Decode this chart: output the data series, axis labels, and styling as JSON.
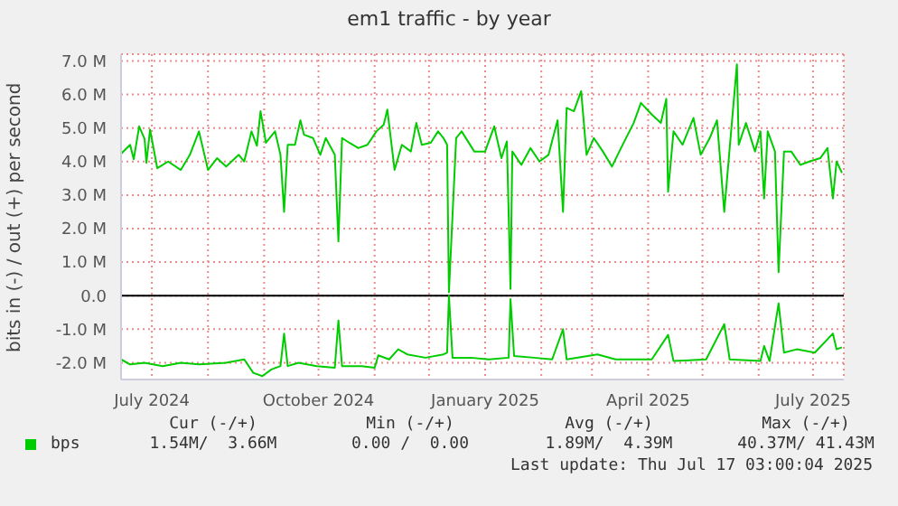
{
  "chart_data": {
    "type": "line",
    "title": "em1 traffic - by year",
    "ylabel": "bits in (-) / out (+) per second",
    "xlim": [
      "2024-06-14",
      "2025-07-18"
    ],
    "xticks": [
      {
        "value": "2024-07-01",
        "label": "July 2024"
      },
      {
        "value": "2024-08-01",
        "label": null
      },
      {
        "value": "2024-09-01",
        "label": null
      },
      {
        "value": "2024-10-01",
        "label": "October 2024"
      },
      {
        "value": "2024-11-01",
        "label": null
      },
      {
        "value": "2024-12-01",
        "label": null
      },
      {
        "value": "2025-01-01",
        "label": "January 2025"
      },
      {
        "value": "2025-02-01",
        "label": null
      },
      {
        "value": "2025-03-01",
        "label": null
      },
      {
        "value": "2025-04-01",
        "label": "April 2025"
      },
      {
        "value": "2025-05-01",
        "label": null
      },
      {
        "value": "2025-06-01",
        "label": null
      },
      {
        "value": "2025-07-01",
        "label": "July 2025"
      }
    ],
    "ylim": [
      -2.5,
      7.2
    ],
    "yticks": [
      {
        "value": -2,
        "label": "-2.0 M"
      },
      {
        "value": -1,
        "label": "-1.0 M"
      },
      {
        "value": 0,
        "label": "0.0"
      },
      {
        "value": 1,
        "label": "1.0 M"
      },
      {
        "value": 2,
        "label": "2.0 M"
      },
      {
        "value": 3,
        "label": "3.0 M"
      },
      {
        "value": 4,
        "label": "4.0 M"
      },
      {
        "value": 5,
        "label": "5.0 M"
      },
      {
        "value": 6,
        "label": "6.0 M"
      },
      {
        "value": 7,
        "label": "7.0 M"
      }
    ],
    "grid": true,
    "legend": "bottom",
    "marker": "none",
    "line_style": "solid",
    "ref_lines": [
      {
        "axis": "y",
        "value": 0,
        "color": "#000000"
      }
    ],
    "series": [
      {
        "name": "bps",
        "color": "#00cc00",
        "x": [
          "2024-06-14",
          "2024-06-19",
          "2024-06-21",
          "2024-06-24",
          "2024-06-27",
          "2024-06-28",
          "2024-06-30",
          "2024-07-04",
          "2024-07-10",
          "2024-07-17",
          "2024-07-22",
          "2024-07-27",
          "2024-08-01",
          "2024-08-06",
          "2024-08-11",
          "2024-08-18",
          "2024-08-21",
          "2024-08-25",
          "2024-08-28",
          "2024-08-30",
          "2024-09-02",
          "2024-09-07",
          "2024-09-10",
          "2024-09-12",
          "2024-09-14",
          "2024-09-18",
          "2024-09-21",
          "2024-09-23",
          "2024-09-28",
          "2024-10-02",
          "2024-10-05",
          "2024-10-10",
          "2024-10-12",
          "2024-10-14",
          "2024-10-18",
          "2024-10-23",
          "2024-10-28",
          "2024-11-02",
          "2024-11-06",
          "2024-11-08",
          "2024-11-12",
          "2024-11-16",
          "2024-11-21",
          "2024-11-24",
          "2024-11-27",
          "2024-12-02",
          "2024-12-06",
          "2024-12-09",
          "2024-12-11",
          "2024-12-12",
          "2024-12-16",
          "2024-12-19",
          "2024-12-26",
          "2025-01-01",
          "2025-01-06",
          "2025-01-10",
          "2025-01-13",
          "2025-01-15",
          "2025-01-16",
          "2025-01-21",
          "2025-01-26",
          "2025-01-31",
          "2025-02-05",
          "2025-02-10",
          "2025-02-13",
          "2025-02-15",
          "2025-02-19",
          "2025-02-23",
          "2025-02-26",
          "2025-03-02",
          "2025-03-07",
          "2025-03-12",
          "2025-03-17",
          "2025-03-24",
          "2025-03-28",
          "2025-04-03",
          "2025-04-08",
          "2025-04-11",
          "2025-04-12",
          "2025-04-15",
          "2025-04-20",
          "2025-04-26",
          "2025-04-30",
          "2025-05-05",
          "2025-05-09",
          "2025-05-13",
          "2025-05-16",
          "2025-05-20",
          "2025-05-21",
          "2025-05-25",
          "2025-05-30",
          "2025-06-02",
          "2025-06-04",
          "2025-06-06",
          "2025-06-10",
          "2025-06-12",
          "2025-06-15",
          "2025-06-19",
          "2025-06-24",
          "2025-06-29",
          "2025-07-05",
          "2025-07-09",
          "2025-07-12",
          "2025-07-14",
          "2025-07-17"
        ],
        "values": [
          4.23,
          4.5,
          4.07,
          5.05,
          4.67,
          3.96,
          4.95,
          3.8,
          4.0,
          3.75,
          4.2,
          4.9,
          3.75,
          4.1,
          3.85,
          4.2,
          4.0,
          4.9,
          4.47,
          5.5,
          4.56,
          4.9,
          4.2,
          2.5,
          4.5,
          4.5,
          5.23,
          4.8,
          4.7,
          4.2,
          4.7,
          4.2,
          1.62,
          4.7,
          4.56,
          4.4,
          4.5,
          4.9,
          5.1,
          5.55,
          3.75,
          4.5,
          4.3,
          5.15,
          4.5,
          4.56,
          4.9,
          4.7,
          4.5,
          0.1,
          4.7,
          4.9,
          4.3,
          4.3,
          5.05,
          4.1,
          4.6,
          0.2,
          4.3,
          3.9,
          4.4,
          4.0,
          4.2,
          5.23,
          2.5,
          5.6,
          5.5,
          6.1,
          4.2,
          4.7,
          4.3,
          3.85,
          4.4,
          5.15,
          5.75,
          5.4,
          5.15,
          5.87,
          3.1,
          4.9,
          4.5,
          5.3,
          4.2,
          4.7,
          5.23,
          2.5,
          4.4,
          6.9,
          4.5,
          5.15,
          4.3,
          4.9,
          2.9,
          4.9,
          4.3,
          0.7,
          4.3,
          4.3,
          3.9,
          4.0,
          4.1,
          4.4,
          2.9,
          4.0,
          3.66
        ]
      },
      {
        "color": "#00cc00",
        "x": [
          "2024-06-14",
          "2024-06-19",
          "2024-06-27",
          "2024-07-07",
          "2024-07-17",
          "2024-07-27",
          "2024-08-11",
          "2024-08-21",
          "2024-08-26",
          "2024-08-31",
          "2024-09-05",
          "2024-09-10",
          "2024-09-12",
          "2024-09-14",
          "2024-09-20",
          "2024-09-30",
          "2024-10-10",
          "2024-10-12",
          "2024-10-14",
          "2024-10-25",
          "2024-11-01",
          "2024-11-03",
          "2024-11-09",
          "2024-11-14",
          "2024-11-19",
          "2024-11-29",
          "2024-12-09",
          "2024-12-11",
          "2024-12-12",
          "2024-12-14",
          "2024-12-24",
          "2025-01-03",
          "2025-01-14",
          "2025-01-15",
          "2025-01-17",
          "2025-01-28",
          "2025-02-07",
          "2025-02-13",
          "2025-02-15",
          "2025-03-04",
          "2025-03-14",
          "2025-04-03",
          "2025-04-12",
          "2025-04-15",
          "2025-05-03",
          "2025-05-13",
          "2025-05-16",
          "2025-06-02",
          "2025-06-04",
          "2025-06-07",
          "2025-06-12",
          "2025-06-15",
          "2025-06-22",
          "2025-07-02",
          "2025-07-12",
          "2025-07-14",
          "2025-07-17"
        ],
        "values": [
          -1.9,
          -2.05,
          -2.0,
          -2.1,
          -2.0,
          -2.05,
          -2.0,
          -1.9,
          -2.3,
          -2.4,
          -2.2,
          -2.1,
          -1.13,
          -2.1,
          -2.0,
          -2.1,
          -2.15,
          -0.74,
          -2.1,
          -2.1,
          -2.15,
          -1.78,
          -1.9,
          -1.6,
          -1.75,
          -1.85,
          -1.75,
          -1.7,
          0,
          -1.85,
          -1.85,
          -1.9,
          -1.85,
          -0.1,
          -1.8,
          -1.85,
          -1.9,
          -1.0,
          -1.9,
          -1.75,
          -1.9,
          -1.9,
          -1.17,
          -1.95,
          -1.9,
          -0.85,
          -1.9,
          -1.95,
          -1.5,
          -1.95,
          -0.23,
          -1.7,
          -1.6,
          -1.7,
          -1.13,
          -1.6,
          -1.54
        ]
      }
    ],
    "annotations": [
      "Cur (-/+)",
      "Min (-/+)",
      "Avg (-/+)",
      "Max (-/+)",
      "1.54M/  3.66M",
      "0.00 /  0.00",
      "1.89M/  4.39M",
      "40.37M/ 41.43M",
      "Last update: Thu Jul 17 03:00:04 2025"
    ]
  }
}
